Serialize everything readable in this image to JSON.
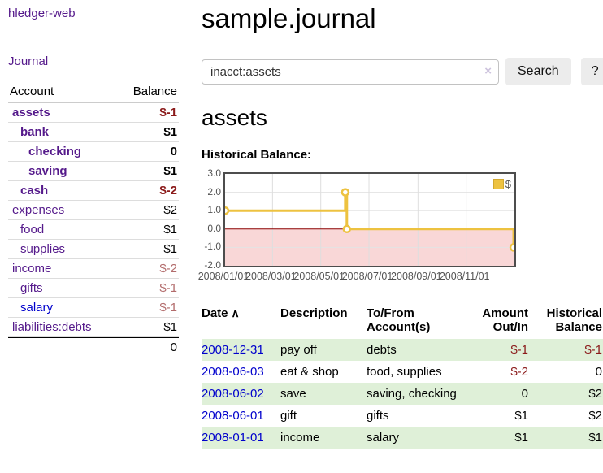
{
  "app": {
    "brand": "hledger-web"
  },
  "sidebar": {
    "nav": {
      "journal": "Journal"
    },
    "accounts": {
      "headers": {
        "account": "Account",
        "balance": "Balance"
      },
      "rows": [
        {
          "label": "assets",
          "balance": "$-1",
          "indent": 1,
          "bold": true,
          "link": "purple",
          "bal_style": "neg-strong"
        },
        {
          "label": "bank",
          "balance": "$1",
          "indent": 2,
          "bold": true,
          "link": "purple",
          "bal_style": ""
        },
        {
          "label": "checking",
          "balance": "0",
          "indent": 3,
          "bold": true,
          "link": "purple",
          "bal_style": ""
        },
        {
          "label": "saving",
          "balance": "$1",
          "indent": 3,
          "bold": true,
          "link": "purple",
          "bal_style": ""
        },
        {
          "label": "cash",
          "balance": "$-2",
          "indent": 2,
          "bold": true,
          "link": "purple",
          "bal_style": "neg-strong"
        },
        {
          "label": "expenses",
          "balance": "$2",
          "indent": 1,
          "bold": false,
          "link": "purple",
          "bal_style": ""
        },
        {
          "label": "food",
          "balance": "$1",
          "indent": 2,
          "bold": false,
          "link": "purple",
          "bal_style": ""
        },
        {
          "label": "supplies",
          "balance": "$1",
          "indent": 2,
          "bold": false,
          "link": "purple",
          "bal_style": ""
        },
        {
          "label": "income",
          "balance": "$-2",
          "indent": 1,
          "bold": false,
          "link": "purple",
          "bal_style": "neg-muted"
        },
        {
          "label": "gifts",
          "balance": "$-1",
          "indent": 2,
          "bold": false,
          "link": "purple",
          "bal_style": "neg-muted"
        },
        {
          "label": "salary",
          "balance": "$-1",
          "indent": 2,
          "bold": false,
          "link": "blue",
          "bal_style": "neg-muted"
        },
        {
          "label": "liabilities:debts",
          "balance": "$1",
          "indent": 1,
          "bold": false,
          "link": "purple",
          "bal_style": ""
        }
      ],
      "total": "0"
    }
  },
  "main": {
    "title": "sample.journal",
    "search": {
      "value": "inacct:assets",
      "clear_icon": "×",
      "button_label": "Search",
      "help_label": "?"
    },
    "account_heading": "assets",
    "chart_title": "Historical Balance:"
  },
  "chart_data": {
    "type": "line",
    "step": true,
    "title": "Historical Balance",
    "legend_position": "top-right",
    "series": [
      {
        "name": "$",
        "color": "#edc240",
        "points": [
          [
            "2008-01-01",
            1
          ],
          [
            "2008-06-01",
            2
          ],
          [
            "2008-06-03",
            0
          ],
          [
            "2008-12-31",
            -1
          ]
        ]
      }
    ],
    "xlim": [
      "2008-01-01",
      "2009-01-01"
    ],
    "ylim": [
      -2,
      3
    ],
    "y_ticks": [
      3.0,
      2.0,
      1.0,
      0.0,
      -1.0,
      -2.0
    ],
    "x_ticks": [
      "2008/01/01",
      "2008/03/01",
      "2008/05/01",
      "2008/07/01",
      "2008/09/01",
      "2008/11/01"
    ],
    "grid": true,
    "negative_region_fill": "#f9d7d7",
    "zero_line_color": "#8b0000"
  },
  "register": {
    "headers": {
      "date": "Date",
      "sort_icon": "∧",
      "description": "Description",
      "accounts": "To/From Account(s)",
      "amount": "Amount Out/In",
      "balance": "Historical Balance"
    },
    "rows": [
      {
        "date": "2008-12-31",
        "description": "pay off",
        "accounts": "debts",
        "amount": "$-1",
        "balance": "$-1",
        "amount_neg": true,
        "balance_neg": true
      },
      {
        "date": "2008-06-03",
        "description": "eat & shop",
        "accounts": "food, supplies",
        "amount": "$-2",
        "balance": "0",
        "amount_neg": true,
        "balance_neg": false
      },
      {
        "date": "2008-06-02",
        "description": "save",
        "accounts": "saving, checking",
        "amount": "0",
        "balance": "$2",
        "amount_neg": false,
        "balance_neg": false
      },
      {
        "date": "2008-06-01",
        "description": "gift",
        "accounts": "gifts",
        "amount": "$1",
        "balance": "$2",
        "amount_neg": false,
        "balance_neg": false
      },
      {
        "date": "2008-01-01",
        "description": "income",
        "accounts": "salary",
        "amount": "$1",
        "balance": "$1",
        "amount_neg": false,
        "balance_neg": false
      }
    ]
  }
}
